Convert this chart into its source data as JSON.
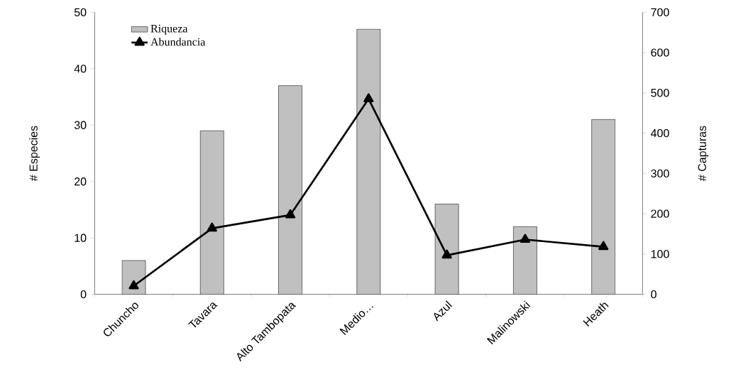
{
  "chart_data": {
    "type": "bar",
    "ylabel": "# Especies",
    "y2label": "# Capturas",
    "categories": [
      "Chuncho",
      "Tavara",
      "Alto Tambopata",
      "Medio…",
      "Azul",
      "Malinowski",
      "Heath"
    ],
    "series": [
      {
        "name": "Riqueza",
        "color": "#c0c0c0",
        "values": [
          6,
          29,
          37,
          47,
          16,
          12,
          31
        ]
      },
      {
        "name": "Abundancia",
        "type": "line",
        "axis": "y2",
        "color": "#000000",
        "marker": "triangle",
        "values": [
          21,
          164,
          197,
          485,
          97,
          136,
          118
        ]
      }
    ],
    "ylim": [
      0,
      50
    ],
    "yticks": [
      0,
      10,
      20,
      30,
      40,
      50
    ],
    "y2lim": [
      0,
      700
    ],
    "y2ticks": [
      0,
      100,
      200,
      300,
      400,
      500,
      600,
      700
    ],
    "grid": false,
    "legend": "top left"
  }
}
